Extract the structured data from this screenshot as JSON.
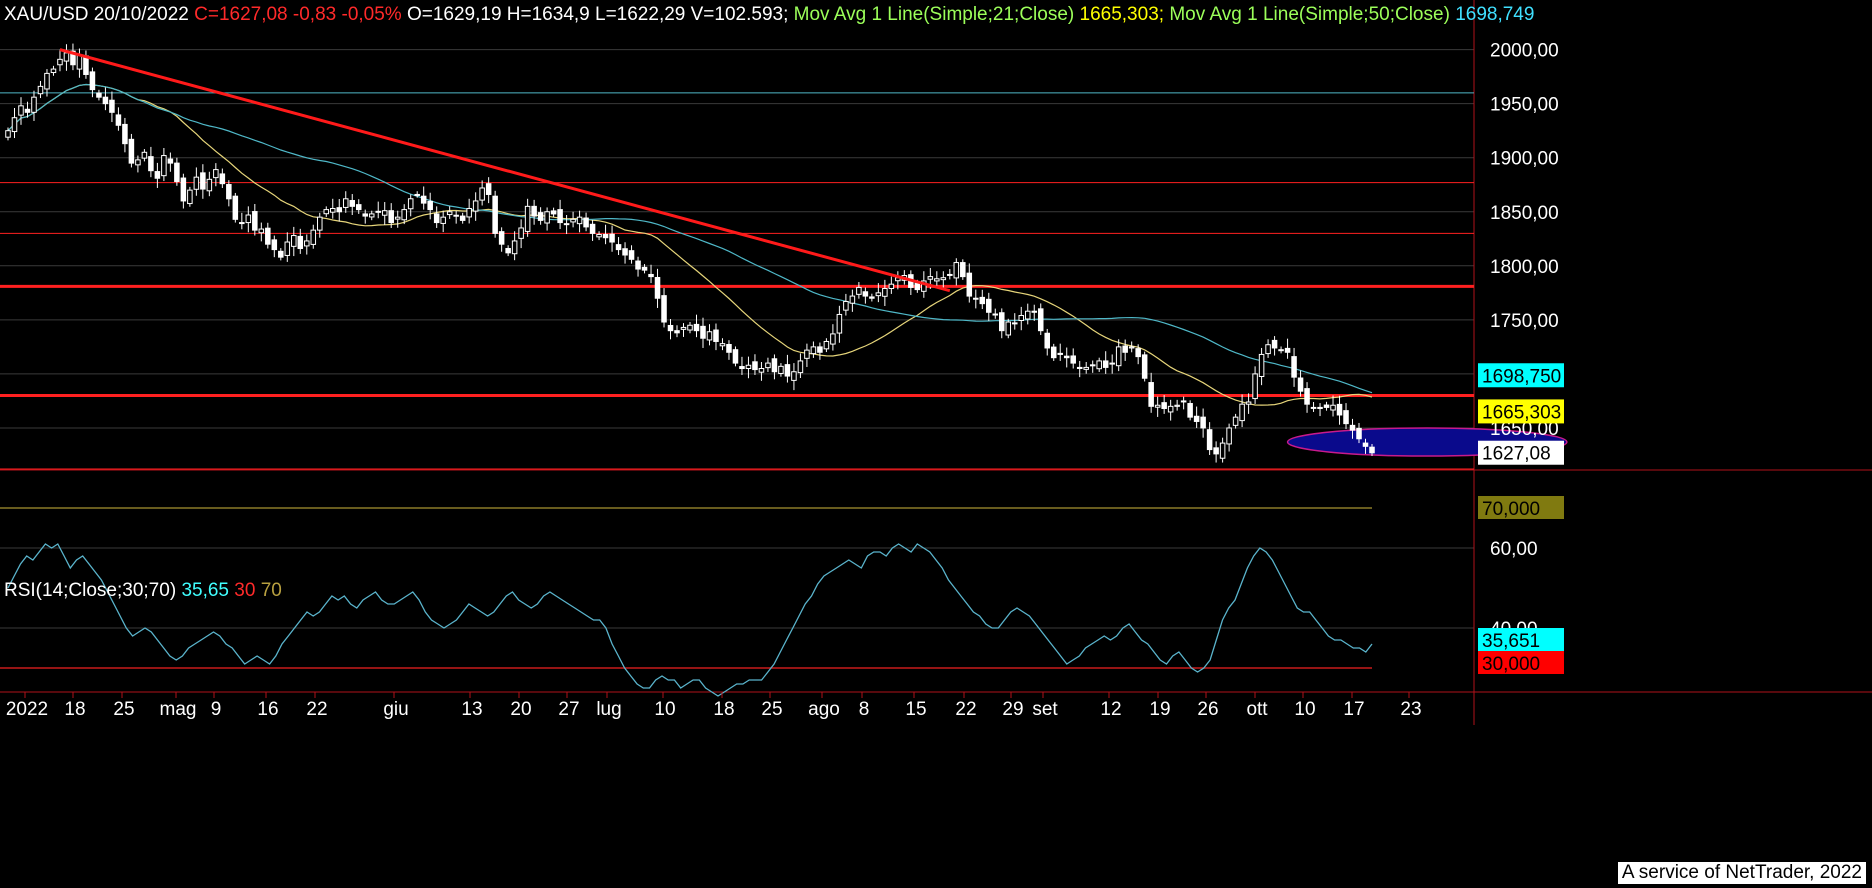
{
  "header": {
    "symbol_date": "XAU/USD 20/10/2022",
    "close": "C=1627,08 -0,83 -0,05%",
    "ohlc": "O=1629,19 H=1634,9 L=1622,29 V=102.593;",
    "ma21_label": "Mov Avg 1 Line(Simple;21;Close)",
    "ma21_value": "1665,303;",
    "ma50_label": "Mov Avg 1 Line(Simple;50;Close)",
    "ma50_value": "1698,749"
  },
  "rsi_header": {
    "label": "RSI(14;Close;30;70)",
    "value": "35,65",
    "low": "30",
    "high": "70"
  },
  "footer": "A service of NetTrader, 2022",
  "colors": {
    "background": "#000000",
    "candle": "#ffffff",
    "trendline": "#ff1a1a",
    "ma21": "#e6d57a",
    "ma50": "#4fb8c8",
    "rsi": "#5ab4cc",
    "ellipse": "#0a0a8c",
    "level": "#ff2020"
  },
  "chart_data": [
    {
      "type": "candlestick",
      "name": "XAU/USD",
      "ylim": [
        1600,
        2020
      ],
      "y_ticks": [
        "2000,00",
        "1950,00",
        "1900,00",
        "1850,00",
        "1800,00",
        "1750,00",
        "1700,00",
        "1650,00"
      ],
      "x_ticks": [
        "2022",
        "18",
        "25",
        "mag",
        "9",
        "16",
        "22",
        "giu",
        "13",
        "20",
        "27",
        "lug",
        "10",
        "18",
        "25",
        "ago",
        "8",
        "15",
        "22",
        "29",
        "set",
        "12",
        "19",
        "26",
        "ott",
        "10",
        "17",
        "23"
      ],
      "price_tags": [
        {
          "value": 1698.75,
          "label": "1698,750",
          "bg": "#00ffff"
        },
        {
          "value": 1665.303,
          "label": "1665,303",
          "bg": "#ffff00"
        },
        {
          "value": 1627.08,
          "label": "1627,08",
          "bg": "#ffffff"
        }
      ],
      "horizontal_levels": [
        {
          "value": 1960,
          "color": "#4fb8c8",
          "width": 1
        },
        {
          "value": 1877,
          "color": "#ff2020",
          "width": 1
        },
        {
          "value": 1830,
          "color": "#ff2020",
          "width": 1
        },
        {
          "value": 1781,
          "color": "#ff2020",
          "width": 3
        },
        {
          "value": 1680,
          "color": "#ff2020",
          "width": 3
        },
        {
          "value": 1612,
          "color": "#ff2020",
          "width": 1
        }
      ],
      "trendline": {
        "from": {
          "i": 8,
          "v": 2000
        },
        "to": {
          "i": 145,
          "v": 1777
        }
      },
      "ellipse": {
        "i_from": 197,
        "i_to": 240,
        "v_center": 1637,
        "v_half": 13
      },
      "closes": [
        1925,
        1937,
        1948,
        1942,
        1956,
        1966,
        1978,
        1982,
        1991,
        1997,
        1986,
        1995,
        1977,
        1963,
        1956,
        1950,
        1942,
        1930,
        1913,
        1895,
        1898,
        1905,
        1888,
        1881,
        1902,
        1895,
        1878,
        1860,
        1870,
        1882,
        1871,
        1880,
        1889,
        1876,
        1862,
        1843,
        1840,
        1847,
        1833,
        1834,
        1820,
        1815,
        1808,
        1822,
        1828,
        1816,
        1823,
        1833,
        1845,
        1852,
        1853,
        1850,
        1862,
        1855,
        1852,
        1846,
        1848,
        1850,
        1851,
        1840,
        1845,
        1852,
        1862,
        1866,
        1858,
        1852,
        1840,
        1845,
        1850,
        1846,
        1842,
        1853,
        1860,
        1872,
        1866,
        1830,
        1820,
        1812,
        1823,
        1835,
        1855,
        1846,
        1842,
        1850,
        1848,
        1840,
        1839,
        1843,
        1845,
        1836,
        1830,
        1829,
        1826,
        1822,
        1815,
        1810,
        1806,
        1797,
        1796,
        1790,
        1770,
        1748,
        1740,
        1738,
        1743,
        1745,
        1740,
        1733,
        1739,
        1730,
        1728,
        1720,
        1710,
        1705,
        1708,
        1704,
        1705,
        1710,
        1702,
        1707,
        1698,
        1702,
        1712,
        1722,
        1725,
        1720,
        1730,
        1737,
        1755,
        1767,
        1772,
        1780,
        1772,
        1770,
        1775,
        1779,
        1783,
        1789,
        1791,
        1780,
        1778,
        1786,
        1790,
        1788,
        1789,
        1792,
        1803,
        1790,
        1772,
        1770,
        1765,
        1757,
        1755,
        1740,
        1748,
        1747,
        1754,
        1758,
        1757,
        1740,
        1724,
        1715,
        1718,
        1715,
        1710,
        1705,
        1706,
        1708,
        1712,
        1706,
        1710,
        1725,
        1720,
        1725,
        1716,
        1696,
        1670,
        1671,
        1668,
        1670,
        1671,
        1675,
        1660,
        1656,
        1650,
        1630,
        1626,
        1636,
        1650,
        1660,
        1672,
        1674,
        1700,
        1718,
        1727,
        1724,
        1722,
        1720,
        1697,
        1684,
        1672,
        1669,
        1668,
        1669,
        1671,
        1662,
        1654,
        1648,
        1640,
        1633,
        1627
      ]
    },
    {
      "type": "line",
      "name": "RSI",
      "ylim": [
        22,
        72
      ],
      "y_ticks": [
        "60,00",
        "40,00"
      ],
      "values": [
        50,
        53,
        56,
        58,
        57,
        59,
        61,
        60,
        61,
        58,
        55,
        57,
        58,
        56,
        54,
        52,
        49,
        46,
        43,
        40,
        38,
        39,
        40,
        39,
        37,
        35,
        33,
        32,
        33,
        35,
        36,
        37,
        38,
        39,
        38,
        36,
        35,
        33,
        31,
        32,
        33,
        32,
        31,
        33,
        36,
        38,
        40,
        42,
        44,
        43,
        44,
        46,
        48,
        47,
        48,
        46,
        45,
        47,
        48,
        49,
        47,
        46,
        46,
        47,
        48,
        49,
        47,
        44,
        42,
        41,
        40,
        41,
        42,
        44,
        46,
        45,
        44,
        43,
        44,
        46,
        48,
        49,
        47,
        46,
        45,
        46,
        48,
        49,
        48,
        47,
        46,
        45,
        44,
        43,
        42,
        42,
        40,
        36,
        33,
        30,
        28,
        26,
        25,
        25,
        27,
        28,
        27,
        27,
        25,
        26,
        27,
        27,
        25,
        24,
        23,
        24,
        25,
        26,
        26,
        27,
        27,
        27,
        29,
        31,
        34,
        37,
        40,
        43,
        46,
        48,
        51,
        53,
        54,
        55,
        56,
        57,
        56,
        55,
        58,
        59,
        59,
        58,
        60,
        61,
        60,
        59,
        61,
        60,
        59,
        57,
        55,
        52,
        50,
        48,
        46,
        44,
        43,
        41,
        40,
        40,
        42,
        44,
        45,
        44,
        43,
        41,
        39,
        37,
        35,
        33,
        31,
        32,
        33,
        35,
        36,
        37,
        38,
        37,
        38,
        40,
        41,
        39,
        37,
        36,
        34,
        32,
        31,
        33,
        34,
        32,
        30,
        29,
        30,
        32,
        37,
        42,
        45,
        47,
        51,
        55,
        58,
        60,
        59,
        57,
        54,
        51,
        48,
        45,
        44,
        44,
        42,
        40,
        38,
        37,
        37,
        36,
        35,
        35,
        34,
        36
      ]
    }
  ]
}
